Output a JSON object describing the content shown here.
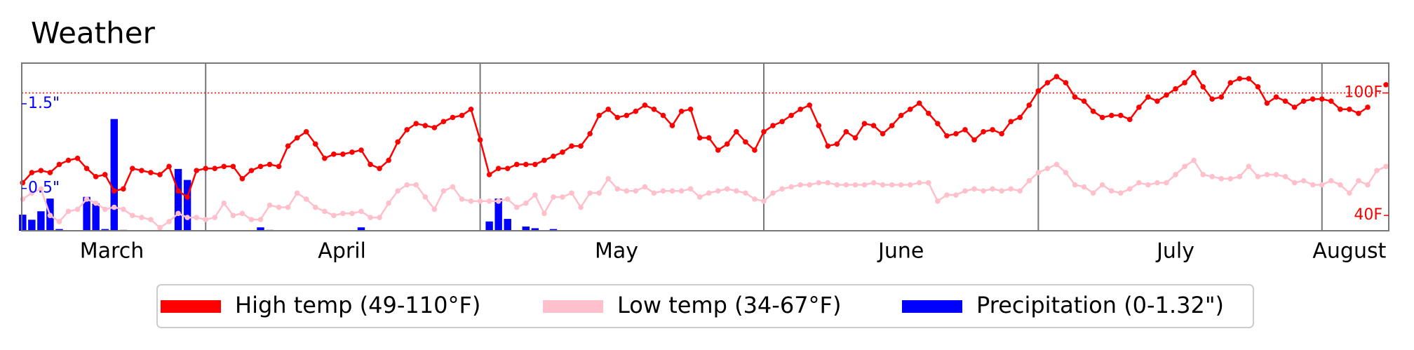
{
  "chart_data": {
    "type": "line",
    "title": "Weather",
    "x": [
      0,
      1,
      2,
      3,
      4,
      5,
      6,
      7,
      8,
      9,
      10,
      11,
      12,
      13,
      14,
      15,
      16,
      17,
      18,
      19,
      20,
      21,
      22,
      23,
      24,
      25,
      26,
      27,
      28,
      29,
      30,
      31,
      32,
      33,
      34,
      35,
      36,
      37,
      38,
      39,
      40,
      41,
      42,
      43,
      44,
      45,
      46,
      47,
      48,
      49,
      50,
      51,
      52,
      53,
      54,
      55,
      56,
      57,
      58,
      59,
      60,
      61,
      62,
      63,
      64,
      65,
      66,
      67,
      68,
      69,
      70,
      71,
      72,
      73,
      74,
      75,
      76,
      77,
      78,
      79,
      80,
      81,
      82,
      83,
      84,
      85,
      86,
      87,
      88,
      89,
      90,
      91,
      92,
      93,
      94,
      95,
      96,
      97,
      98,
      99,
      100,
      101,
      102,
      103,
      104,
      105,
      106,
      107,
      108,
      109,
      110,
      111,
      112,
      113,
      114,
      115,
      116,
      117,
      118,
      119,
      120,
      121,
      122,
      123,
      124,
      125,
      126,
      127,
      128,
      129,
      130,
      131,
      132,
      133,
      134,
      135,
      136,
      137,
      138,
      139,
      140,
      141,
      142,
      143,
      144,
      145,
      146,
      147,
      148,
      149
    ],
    "xlim": [
      -0.1,
      149.3
    ],
    "xticks": [
      {
        "value": 9.75,
        "label": "March"
      },
      {
        "value": 34.9,
        "label": "April"
      },
      {
        "value": 64.9,
        "label": "May"
      },
      {
        "value": 96,
        "label": "June"
      },
      {
        "value": 126,
        "label": "July"
      },
      {
        "value": 145,
        "label": "August"
      }
    ],
    "xgrid": [
      20,
      50,
      81,
      111,
      142
    ],
    "ylim": [
      32.5,
      114.6
    ],
    "yticks": [
      {
        "value": 40,
        "label": "40F"
      },
      {
        "value": 100,
        "label": "100F"
      }
    ],
    "y2lim": [
      0,
      1.98
    ],
    "y2ticks": [
      {
        "value": 0.5,
        "label": "0.5\""
      },
      {
        "value": 1.5,
        "label": "1.5\""
      }
    ],
    "reference_line": {
      "value": 100,
      "color": "red"
    },
    "series": [
      {
        "name": "High temp (49-110°F)",
        "color": "red",
        "values": [
          56,
          61,
          62,
          61,
          65,
          67,
          68,
          63,
          59,
          60,
          52,
          53,
          63,
          62,
          61,
          60,
          64,
          52,
          49,
          62,
          63,
          63,
          64,
          64,
          58,
          62,
          64,
          65,
          64,
          74,
          78,
          81,
          75,
          68,
          70,
          70,
          71,
          72,
          65,
          63,
          67,
          76,
          82,
          85,
          84,
          83,
          86,
          88,
          89,
          92,
          77,
          60,
          63,
          63,
          65,
          65,
          65,
          67,
          69,
          71,
          74,
          74,
          80,
          89,
          92,
          88,
          89,
          91,
          94,
          92,
          89,
          84,
          91,
          92,
          78,
          78,
          72,
          75,
          81,
          76,
          72,
          81,
          84,
          86,
          89,
          92,
          94,
          84,
          74,
          75,
          81,
          78,
          85,
          84,
          80,
          84,
          89,
          92,
          95,
          90,
          85,
          79,
          80,
          82,
          77,
          81,
          82,
          80,
          86,
          88,
          94,
          101,
          105,
          108,
          105,
          98,
          96,
          91,
          88,
          89,
          89,
          87,
          93,
          98,
          96,
          99,
          102,
          105,
          110,
          103,
          97,
          98,
          105,
          107,
          107,
          103,
          95,
          98,
          96,
          93,
          96,
          97,
          97,
          96,
          92,
          92,
          90,
          93,
          null,
          104
        ]
      },
      {
        "name": "Low temp (34-67°F)",
        "color": "pink",
        "values": [
          48,
          51,
          53,
          40,
          37,
          42,
          43,
          48,
          46,
          43,
          44,
          43,
          40,
          39,
          38,
          34,
          37,
          41,
          39,
          39,
          38,
          39,
          46,
          40,
          41,
          38,
          38,
          45,
          44,
          44,
          51,
          48,
          44,
          42,
          40,
          41,
          41,
          42,
          39,
          39,
          46,
          52,
          55,
          55,
          49,
          43,
          52,
          54,
          48,
          47,
          47,
          47,
          47,
          48,
          44,
          46,
          50,
          41,
          49,
          49,
          51,
          44,
          51,
          51,
          58,
          53,
          52,
          52,
          54,
          51,
          52,
          52,
          52,
          53,
          49,
          51,
          52,
          53,
          52,
          51,
          48,
          47,
          51,
          53,
          54,
          55,
          55,
          56,
          56,
          55,
          55,
          55,
          55,
          56,
          55,
          55,
          55,
          55,
          56,
          56,
          47,
          50,
          50,
          52,
          53,
          52,
          53,
          52,
          53,
          52,
          57,
          61,
          63,
          65,
          61,
          55,
          54,
          51,
          55,
          52,
          51,
          53,
          56,
          55,
          56,
          56,
          60,
          64,
          67,
          60,
          59,
          58,
          58,
          59,
          64,
          59,
          60,
          60,
          59,
          56,
          57,
          55,
          55,
          57,
          55,
          51,
          57,
          55,
          62,
          64
        ]
      },
      {
        "name": "Precipitation (0-1.32\")",
        "color": "blue",
        "type": "bar",
        "axis": "y2",
        "values": [
          0.19,
          0.13,
          0.23,
          0.38,
          0.02,
          0,
          0,
          0.4,
          0.32,
          0.02,
          1.32,
          0.01,
          0,
          0,
          0,
          0,
          0,
          0.73,
          0.6,
          0,
          0,
          0,
          0,
          0,
          0,
          0,
          0.04,
          0.01,
          0,
          0,
          0,
          0,
          0,
          0,
          0,
          0,
          0,
          0.04,
          0,
          0,
          0,
          0,
          0,
          0,
          0,
          0,
          0,
          0,
          0,
          0,
          0,
          0.11,
          0.38,
          0.14,
          0,
          0.05,
          0.03,
          0,
          0.02,
          0,
          0,
          0,
          0,
          0,
          0,
          0,
          0,
          0,
          0,
          0,
          0,
          0,
          0,
          0,
          0,
          0,
          0,
          0,
          0,
          0,
          0,
          0,
          0,
          0,
          0,
          0,
          0,
          0,
          0,
          0,
          0,
          0,
          0,
          0,
          0,
          0,
          0,
          0,
          0,
          0,
          0,
          0,
          0,
          0,
          0,
          0,
          0,
          0,
          0,
          0,
          0,
          0,
          0,
          0,
          0,
          0,
          0,
          0,
          0,
          0,
          0,
          0,
          0,
          0,
          0,
          0,
          0,
          0,
          0,
          0,
          0,
          0,
          0,
          0,
          0,
          0,
          0,
          0,
          0,
          0,
          0,
          0,
          0,
          0,
          0,
          0,
          0,
          0,
          0,
          0
        ]
      }
    ]
  }
}
